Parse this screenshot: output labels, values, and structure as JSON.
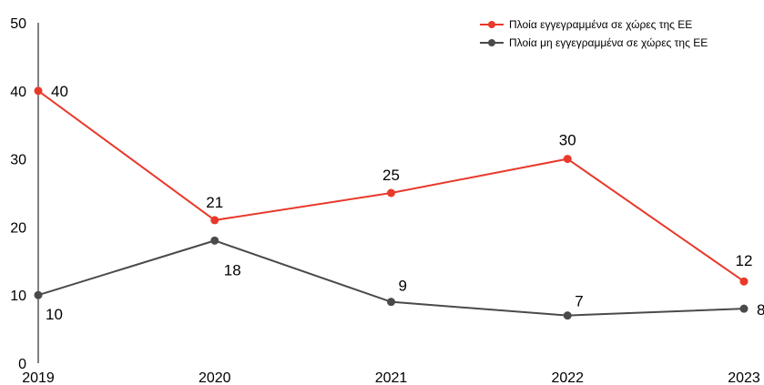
{
  "chart_data": {
    "type": "line",
    "categories": [
      "2019",
      "2020",
      "2021",
      "2022",
      "2023"
    ],
    "series": [
      {
        "name": "Πλοία εγγεγραμμένα σε χώρες της ΕΕ",
        "values": [
          40,
          21,
          25,
          30,
          12
        ],
        "color": "#e8392b"
      },
      {
        "name": "Πλοία μη εγγεγραμμένα σε χώρες της ΕΕ",
        "values": [
          10,
          18,
          9,
          7,
          8
        ],
        "color": "#4a4a4a"
      }
    ],
    "y_ticks": [
      "0",
      "10",
      "20",
      "30",
      "40",
      "50"
    ],
    "ylim": [
      0,
      50
    ],
    "grid": false,
    "legend_position": "top-right"
  }
}
